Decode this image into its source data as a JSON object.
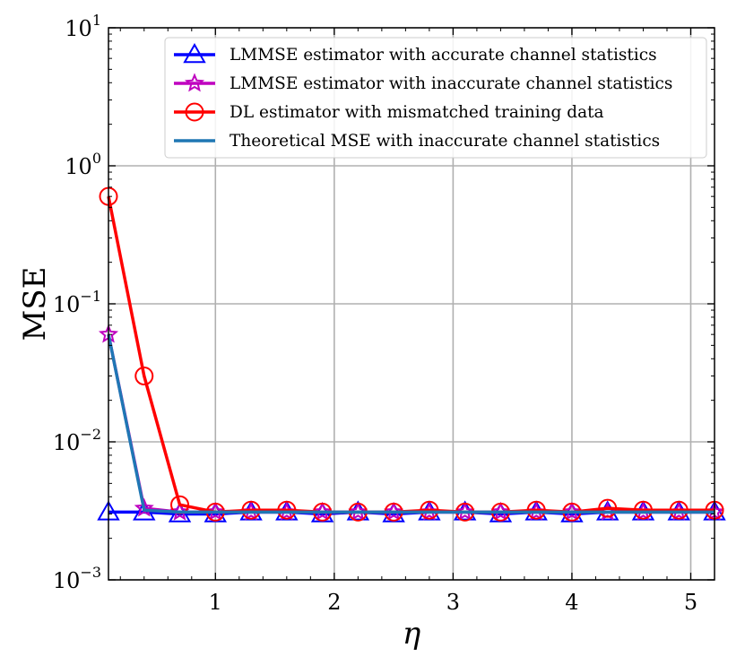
{
  "chart_data": {
    "type": "line",
    "title": "",
    "xlabel": "η",
    "ylabel": "MSE",
    "yscale": "log",
    "xlim": [
      0.1,
      5.2
    ],
    "ylim": [
      0.001,
      10
    ],
    "grid": true,
    "legend_position": "top-right",
    "x_ticks": [
      {
        "value": 1,
        "label": "1"
      },
      {
        "value": 2,
        "label": "2"
      },
      {
        "value": 3,
        "label": "3"
      },
      {
        "value": 4,
        "label": "4"
      },
      {
        "value": 5,
        "label": "5"
      }
    ],
    "y_ticks": [
      {
        "value": 0.001,
        "base": "10",
        "exp": "−3"
      },
      {
        "value": 0.01,
        "base": "10",
        "exp": "−2"
      },
      {
        "value": 0.1,
        "base": "10",
        "exp": "−1"
      },
      {
        "value": 1,
        "base": "10",
        "exp": "0"
      },
      {
        "value": 10,
        "base": "10",
        "exp": "1"
      }
    ],
    "x": [
      0.1,
      0.4,
      0.7,
      1.0,
      1.3,
      1.6,
      1.9,
      2.2,
      2.5,
      2.8,
      3.1,
      3.4,
      3.7,
      4.0,
      4.3,
      4.6,
      4.9,
      5.2
    ],
    "series": [
      {
        "name": "LMMSE estimator with accurate channel statistics",
        "color": "#0000ff",
        "marker": "triangle",
        "values": [
          0.0031,
          0.0031,
          0.003,
          0.003,
          0.0031,
          0.0031,
          0.003,
          0.0031,
          0.003,
          0.0031,
          0.0031,
          0.003,
          0.0031,
          0.003,
          0.0031,
          0.0031,
          0.0031,
          0.0031
        ]
      },
      {
        "name": "LMMSE estimator with inaccurate channel statistics",
        "color": "#bf00bf",
        "marker": "star",
        "values": [
          0.06,
          0.0033,
          0.0031,
          0.0031,
          0.0031,
          0.0031,
          0.0031,
          0.0031,
          0.0031,
          0.0031,
          0.0031,
          0.0031,
          0.0031,
          0.0031,
          0.0031,
          0.0031,
          0.0031,
          0.0031
        ]
      },
      {
        "name": "DL estimator with mismatched training data",
        "color": "#ff0000",
        "marker": "circle",
        "values": [
          0.6,
          0.03,
          0.0035,
          0.0031,
          0.0032,
          0.0032,
          0.0031,
          0.0031,
          0.0031,
          0.0032,
          0.0031,
          0.0031,
          0.0032,
          0.0031,
          0.0033,
          0.0032,
          0.0032,
          0.0032
        ]
      },
      {
        "name": "Theoretical MSE with inaccurate channel statistics",
        "color": "#1f77b4",
        "marker": "none",
        "values": [
          0.06,
          0.0032,
          0.0031,
          0.0031,
          0.0031,
          0.0031,
          0.0031,
          0.0031,
          0.0031,
          0.0031,
          0.0031,
          0.0031,
          0.0031,
          0.0031,
          0.0031,
          0.0031,
          0.0031,
          0.0031
        ]
      }
    ]
  }
}
